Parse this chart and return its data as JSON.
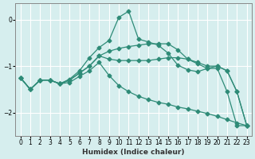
{
  "background_color": "#d6eeee",
  "grid_color": "#b8d8d8",
  "line_color": "#2e8b77",
  "xlabel": "Humidex (Indice chaleur)",
  "ylim": [
    -2.5,
    0.35
  ],
  "xlim": [
    -0.5,
    23.5
  ],
  "yticks": [
    0,
    -1,
    -2
  ],
  "xticks": [
    0,
    1,
    2,
    3,
    4,
    5,
    6,
    7,
    8,
    9,
    10,
    11,
    12,
    13,
    14,
    15,
    16,
    17,
    18,
    19,
    20,
    21,
    22,
    23
  ],
  "line1_x": [
    0,
    1,
    2,
    3,
    4,
    5,
    6,
    7,
    8,
    9,
    10,
    11,
    12,
    13,
    14,
    15,
    16,
    17,
    18,
    19,
    20,
    21,
    22,
    23
  ],
  "line1_y": [
    -1.25,
    -1.5,
    -1.3,
    -1.3,
    -1.38,
    -1.28,
    -1.1,
    -0.82,
    -0.6,
    -0.45,
    0.05,
    0.18,
    -0.42,
    -0.48,
    -0.55,
    -0.72,
    -0.98,
    -1.08,
    -1.12,
    -1.05,
    -1.05,
    -1.55,
    -2.28,
    -2.28
  ],
  "line2_x": [
    0,
    1,
    2,
    3,
    4,
    5,
    6,
    7,
    8,
    9,
    10,
    11,
    12,
    13,
    14,
    15,
    16,
    17,
    18,
    19,
    20,
    21,
    22,
    23
  ],
  "line2_y": [
    -1.25,
    -1.5,
    -1.3,
    -1.3,
    -1.38,
    -1.3,
    -1.15,
    -1.0,
    -0.78,
    -0.68,
    -0.62,
    -0.58,
    -0.55,
    -0.52,
    -0.52,
    -0.52,
    -0.65,
    -0.85,
    -0.95,
    -1.05,
    -1.0,
    -1.1,
    -1.55,
    -2.28
  ],
  "line3_x": [
    0,
    1,
    2,
    3,
    4,
    5,
    6,
    7,
    8,
    9,
    10,
    11,
    12,
    13,
    14,
    15,
    16,
    17,
    18,
    19,
    20,
    21,
    22,
    23
  ],
  "line3_y": [
    -1.25,
    -1.5,
    -1.3,
    -1.3,
    -1.38,
    -1.3,
    -1.15,
    -1.0,
    -0.78,
    -0.85,
    -0.88,
    -0.88,
    -0.88,
    -0.88,
    -0.85,
    -0.82,
    -0.82,
    -0.85,
    -0.92,
    -1.0,
    -1.0,
    -1.1,
    -1.55,
    -2.28
  ],
  "line4_x": [
    0,
    1,
    2,
    3,
    4,
    5,
    6,
    7,
    8,
    9,
    10,
    11,
    12,
    13,
    14,
    15,
    16,
    17,
    18,
    19,
    20,
    21,
    22,
    23
  ],
  "line4_y": [
    -1.25,
    -1.5,
    -1.3,
    -1.3,
    -1.38,
    -1.35,
    -1.22,
    -1.1,
    -0.92,
    -1.2,
    -1.42,
    -1.55,
    -1.65,
    -1.72,
    -1.78,
    -1.82,
    -1.88,
    -1.92,
    -1.97,
    -2.02,
    -2.08,
    -2.15,
    -2.22,
    -2.28
  ]
}
